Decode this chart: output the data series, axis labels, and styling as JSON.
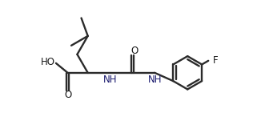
{
  "bg_color": "#ffffff",
  "line_color": "#2b2b2b",
  "text_color": "#1a1a6e",
  "atom_color": "#1a1a1a",
  "line_width": 1.7,
  "font_size": 8.5,
  "fig_width": 3.36,
  "fig_height": 1.71,
  "dpi": 100,
  "xlim": [
    -0.5,
    10.5
  ],
  "ylim": [
    -1.2,
    5.2
  ]
}
